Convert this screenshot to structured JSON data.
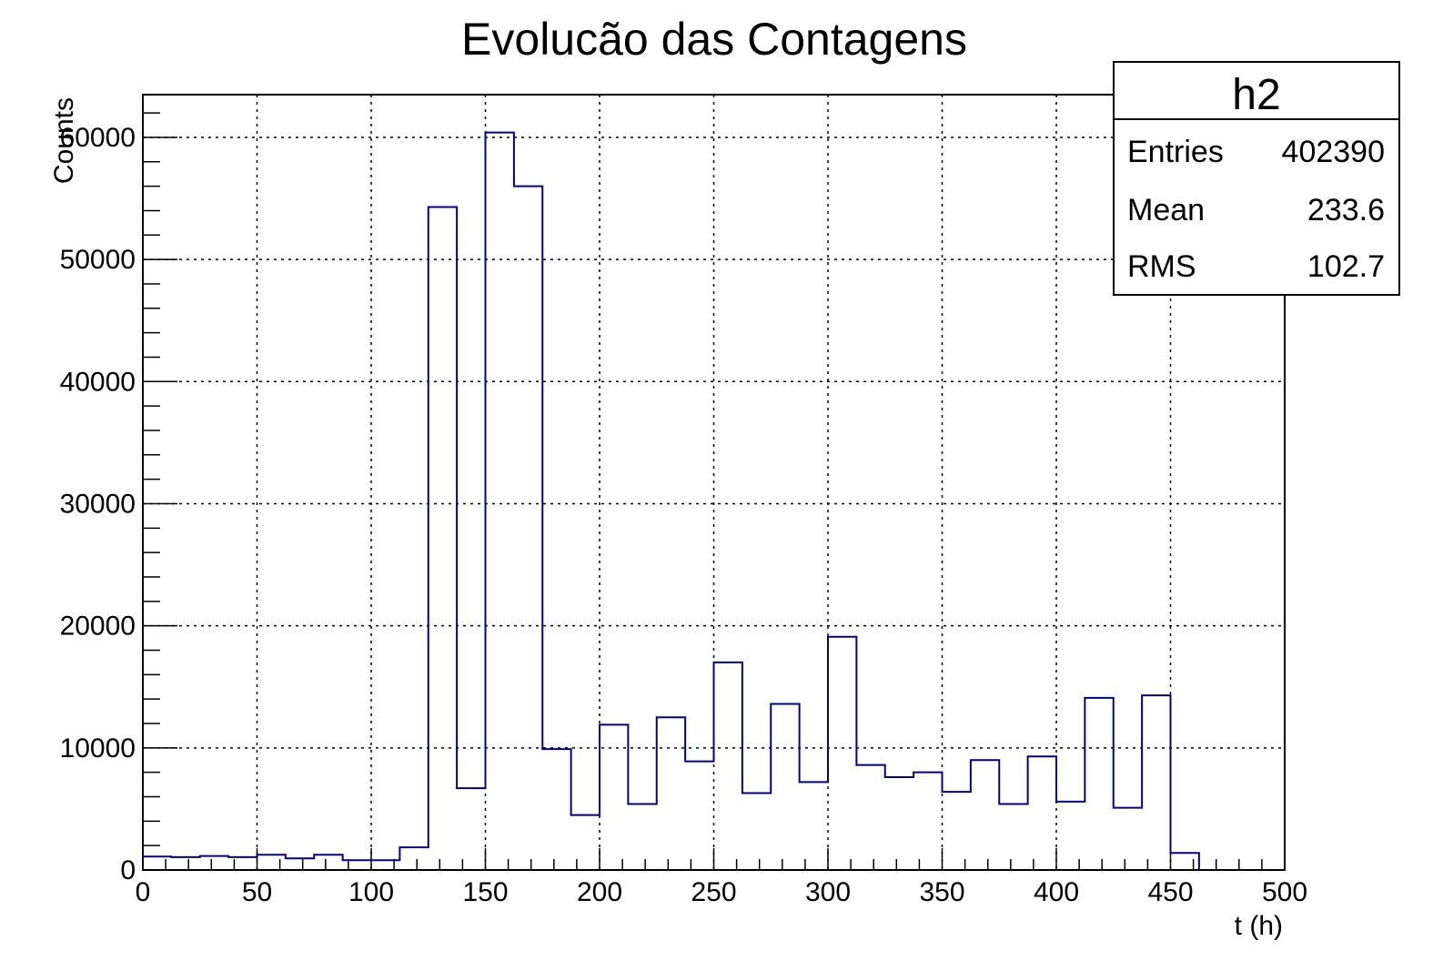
{
  "chart_data": {
    "type": "bar",
    "title": "Evolucão das Contagens",
    "xlabel": "t (h)",
    "ylabel": "Counts",
    "xlim": [
      0,
      500
    ],
    "ylim": [
      0,
      63500
    ],
    "grid": true,
    "bin_width": 12.5,
    "bin_edges_start": 0,
    "values": [
      1100,
      1050,
      1150,
      1050,
      1250,
      950,
      1250,
      800,
      800,
      1850,
      54300,
      6700,
      60400,
      56000,
      9900,
      4500,
      11900,
      5400,
      12500,
      8900,
      17000,
      6300,
      13600,
      7200,
      19100,
      8600,
      7600,
      8000,
      6400,
      9000,
      5400,
      9300,
      5600,
      14100,
      5100,
      14300,
      1400,
      0,
      0,
      0
    ],
    "x_ticks": [
      "0",
      "50",
      "100",
      "150",
      "200",
      "250",
      "300",
      "350",
      "400",
      "450",
      "500"
    ],
    "y_ticks": [
      "0",
      "10000",
      "20000",
      "30000",
      "40000",
      "50000",
      "60000"
    ],
    "line_color": "#00008b"
  },
  "stats_box": {
    "name": "h2",
    "rows": [
      {
        "label": "Entries",
        "value": "402390"
      },
      {
        "label": "Mean",
        "value": "233.6"
      },
      {
        "label": "RMS",
        "value": "102.7"
      }
    ]
  }
}
